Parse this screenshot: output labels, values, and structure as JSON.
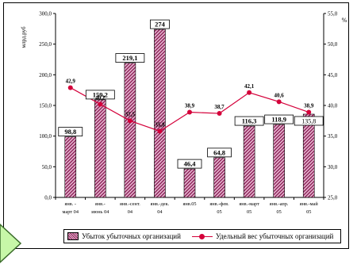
{
  "chart_data": {
    "type": "bar+line",
    "ylabel_left": "млрд.руб",
    "ylabel_right": "%",
    "ylim_left": [
      0,
      300
    ],
    "ylim_right": [
      25,
      55
    ],
    "yticks_left": [
      "0,0",
      "50,0",
      "100,0",
      "150,0",
      "200,0",
      "250,0",
      "300,0"
    ],
    "yticks_right": [
      "25,0",
      "30,0",
      "35,0",
      "40,0",
      "45,0",
      "50,0",
      "55,0"
    ],
    "categories": [
      [
        "янв. -",
        "март 04"
      ],
      [
        "янв.-",
        "июнь 04"
      ],
      [
        "янв.-сент.",
        "04"
      ],
      [
        "янв.-дек.",
        "04"
      ],
      [
        "янв.05",
        ""
      ],
      [
        "янв.-фев.",
        "05"
      ],
      [
        "янв.-март",
        "05"
      ],
      [
        "янв.-апр.",
        "05"
      ],
      [
        "янв.-май",
        "05"
      ]
    ],
    "series": [
      {
        "name": "Убыток убыточных организаций",
        "type": "bar",
        "axis": "left",
        "values": [
          98.8,
          159.2,
          219.1,
          274,
          46.4,
          64.8,
          116.3,
          118.9,
          135.8
        ],
        "labels": [
          "98,8",
          "159,2",
          "219,1",
          "274",
          "46,4",
          "64,8",
          "116,3",
          "118,9",
          "135,8"
        ]
      },
      {
        "name": "Удельный вес убыточных организаций",
        "type": "line",
        "axis": "right",
        "values": [
          42.9,
          40.2,
          37.5,
          35.8,
          38.9,
          38.7,
          42.1,
          40.6,
          38.9
        ],
        "labels": [
          "42,9",
          "40,2",
          "37,5",
          "35,8",
          "38,9",
          "38,7",
          "42,1",
          "40,6",
          "38,9"
        ]
      }
    ],
    "legend": "bottom",
    "grid": false
  },
  "colors": {
    "bar_light": "#e8b9d2",
    "bar_dark": "#8a1d55",
    "line": "#d4003a",
    "arrow_fill": "#c7f7a8",
    "arrow_stroke": "#3a6b2a"
  }
}
